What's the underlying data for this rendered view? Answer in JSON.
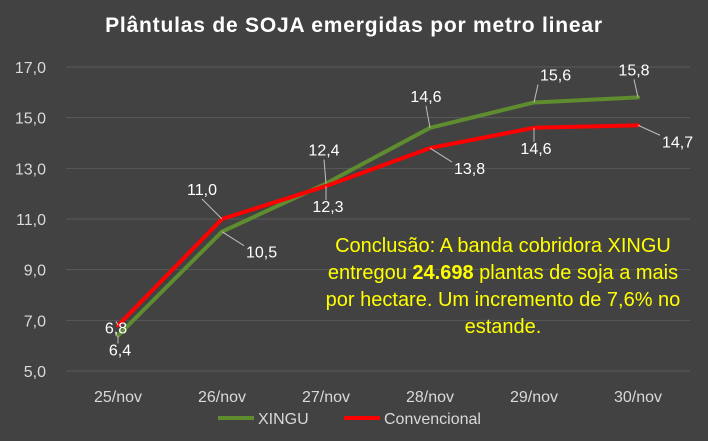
{
  "chart_data": {
    "type": "line",
    "title": "Plântulas de SOJA emergidas por metro linear",
    "categories": [
      "25/nov",
      "26/nov",
      "27/nov",
      "28/nov",
      "29/nov",
      "30/nov"
    ],
    "series": [
      {
        "name": "XINGU",
        "color": "#5e8c2f",
        "values": [
          6.4,
          10.5,
          12.4,
          14.6,
          15.6,
          15.8
        ],
        "labels": [
          "6,4",
          "10,5",
          "12,4",
          "14,6",
          "15,6",
          "15,8"
        ]
      },
      {
        "name": "Convencional",
        "color": "#ff0000",
        "values": [
          6.8,
          11.0,
          12.3,
          13.8,
          14.6,
          14.7
        ],
        "labels": [
          "6,8",
          "11,0",
          "12,3",
          "13,8",
          "14,6",
          "14,7"
        ]
      }
    ],
    "ylim": [
      5.0,
      17.0
    ],
    "yticks": [
      5.0,
      7.0,
      9.0,
      11.0,
      13.0,
      15.0,
      17.0
    ],
    "ytick_labels": [
      "5,0",
      "7,0",
      "9,0",
      "11,0",
      "13,0",
      "15,0",
      "17,0"
    ],
    "grid": true,
    "legend": "bottom",
    "annotation": {
      "before": "Conclusão: A banda cobridora XINGU entregou ",
      "bold": "24.698",
      "after": " plantas de soja a mais por hectare. Um incremento de 7,6% no estande."
    }
  },
  "colors": {
    "background": "#424242",
    "grid": "#5a5a5a",
    "text": "#ffffff",
    "axis_text": "#d9d9d9",
    "annotation": "#ffff00"
  }
}
